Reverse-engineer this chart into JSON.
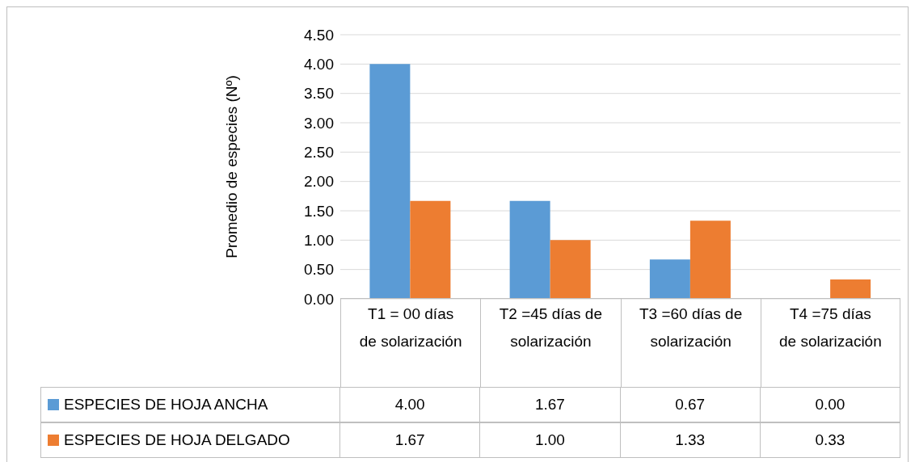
{
  "chart_data": {
    "type": "bar",
    "ylabel": "Promedio de especies (Nº)",
    "categories": [
      "T1 = 00 días de solarización",
      "T2 =45 días de solarización",
      "T3 =60 días de solarización",
      "T4 =75 días de solarización"
    ],
    "series": [
      {
        "name": "ESPECIES DE HOJA ANCHA",
        "color": "#5b9bd5",
        "values": [
          4.0,
          1.67,
          0.67,
          0.0
        ],
        "value_labels": [
          "4.00",
          "1.67",
          "0.67",
          "0.00"
        ]
      },
      {
        "name": "ESPECIES DE HOJA DELGADO",
        "color": "#ed7d31",
        "values": [
          1.67,
          1.0,
          1.33,
          0.33
        ],
        "value_labels": [
          "1.67",
          "1.00",
          "1.33",
          "0.33"
        ]
      }
    ],
    "ylim": [
      0,
      4.5
    ],
    "yticks": [
      {
        "value": 0,
        "label": "0.00"
      },
      {
        "value": 0.5,
        "label": "0.50"
      },
      {
        "value": 1,
        "label": "1.00"
      },
      {
        "value": 1.5,
        "label": "1.50"
      },
      {
        "value": 2,
        "label": "2.00"
      },
      {
        "value": 2.5,
        "label": "2.50"
      },
      {
        "value": 3,
        "label": "3.00"
      },
      {
        "value": 3.5,
        "label": "3.50"
      },
      {
        "value": 4,
        "label": "4.00"
      },
      {
        "value": 4.5,
        "label": "4.50"
      }
    ],
    "grid": "y",
    "legend": "bottom"
  }
}
